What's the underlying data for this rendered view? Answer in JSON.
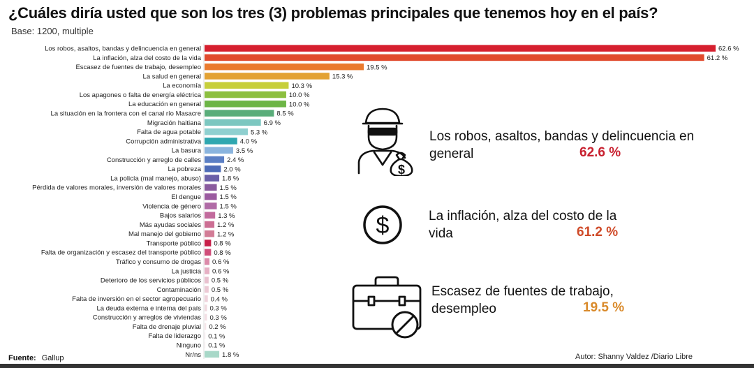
{
  "header": {
    "title": "¿Cuáles diría usted que son los tres (3) problemas principales que tenemos hoy en el país?",
    "subtitle": "Base: 1200, multiple"
  },
  "chart_data": {
    "type": "bar",
    "orientation": "horizontal",
    "unit": "%",
    "xlim": [
      0,
      62.6
    ],
    "grid": false,
    "categories": [
      "Los robos, asaltos, bandas y delincuencia en general",
      "La inflación, alza del costo de la vida",
      "Escasez de fuentes de trabajo, desempleo",
      "La salud en general",
      "La economía",
      "Los apagones o falta de energía eléctrica",
      "La educación en general",
      "La situación en la frontera con el canal río Masacre",
      "Migración haitiana",
      "Falta de agua potable",
      "Corrupción administrativa",
      "La basura",
      "Construcción y arreglo de calles",
      "La pobreza",
      "La policía (mal manejo, abuso)",
      "Pérdida de valores morales, inversión de valores morales",
      "El dengue",
      "Violencia de género",
      "Bajos salarios",
      "Más ayudas sociales",
      "Mal manejo del gobierno",
      "Transporte público",
      "Falta de organización y escasez del transporte público",
      "Tráfico y consumo de drogas",
      "La justicia",
      "Deterioro de los servicios públicos",
      "Contaminación",
      "Falta de inversión en el sector agropecuario",
      "La deuda externa e interna del país",
      "Construcción y arreglos de viviendas",
      "Falta de drenaje pluvial",
      "Falta de liderazgo",
      "Ninguno",
      "Nr/ns"
    ],
    "values": [
      62.6,
      61.2,
      19.5,
      15.3,
      10.3,
      10.0,
      10.0,
      8.5,
      6.9,
      5.3,
      4.0,
      3.5,
      2.4,
      2.0,
      1.8,
      1.5,
      1.5,
      1.5,
      1.3,
      1.2,
      1.2,
      0.8,
      0.8,
      0.6,
      0.6,
      0.5,
      0.5,
      0.4,
      0.3,
      0.3,
      0.2,
      0.1,
      0.1,
      1.8
    ],
    "value_labels": [
      "62.6 %",
      "61.2 %",
      "19.5 %",
      "15.3 %",
      "10.3 %",
      "10.0 %",
      "10.0 %",
      "8.5 %",
      "6.9 %",
      "5.3 %",
      "4.0 %",
      "3.5 %",
      "2.4 %",
      "2.0 %",
      "1.8 %",
      "1.5 %",
      "1.5 %",
      "1.5 %",
      "1.3 %",
      "1.2 %",
      "1.2 %",
      "0.8 %",
      "0.8 %",
      "0.6 %",
      "0.6 %",
      "0.5 %",
      "0.5 %",
      "0.4 %",
      "0.3 %",
      "0.3 %",
      "0.2 %",
      "0.1 %",
      "0.1 %",
      "1.8 %"
    ],
    "colors": [
      "#d61f2e",
      "#e14a2d",
      "#ea7a2e",
      "#e3a233",
      "#c7cf3b",
      "#8cbf3f",
      "#6cb545",
      "#5aad7a",
      "#7cc7c0",
      "#8fd0d0",
      "#2fa7b0",
      "#8ab4de",
      "#5b7fc4",
      "#4d6bb7",
      "#6a5fa8",
      "#8a5b9e",
      "#9b5ba0",
      "#b06aa6",
      "#c26b9d",
      "#cc6e93",
      "#d27c96",
      "#c8204a",
      "#d04e7a",
      "#dc8aaa",
      "#e6b0c4",
      "#e9c1cf",
      "#ecc9d4",
      "#efd2db",
      "#f1d9df",
      "#f3dfe4",
      "#f5e5e9",
      "#f7ebee",
      "#f9f0f2",
      "#a8d8c8"
    ]
  },
  "highlights": [
    {
      "text": "Los robos, asaltos, bandas y delincuencia en general",
      "value": "62.6 %",
      "icon": "thief-icon"
    },
    {
      "text": "La inflación, alza del costo de la vida",
      "value": "61.2 %",
      "icon": "dollar-coin-icon"
    },
    {
      "text": "Escasez de fuentes de trabajo, desempleo",
      "value": "19.5 %",
      "icon": "briefcase-no-icon"
    }
  ],
  "footer": {
    "source_label": "Fuente:",
    "source": "Gallup",
    "author": "Autor: Shanny Valdez /Diario Libre"
  }
}
